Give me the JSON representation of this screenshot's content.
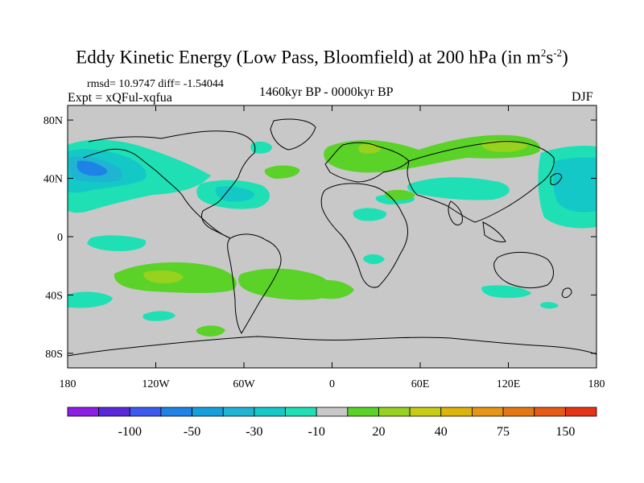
{
  "title": {
    "main": "Eddy Kinetic Energy (Low Pass, Bloomfield) at 200 hPa (in m",
    "sup1": "2",
    "mid": "s",
    "sup2": "-2",
    "end": ")"
  },
  "stats": "rmsd= 10.9747 diff= -1.54044",
  "experiment": "Expt = xQFul-xqfua",
  "period": "1460kyr BP - 0000kyr BP",
  "season": "DJF",
  "axes": {
    "x_ticks": [
      {
        "lon": -180,
        "label": "180"
      },
      {
        "lon": -120,
        "label": "120W"
      },
      {
        "lon": -60,
        "label": "60W"
      },
      {
        "lon": 0,
        "label": "0"
      },
      {
        "lon": 60,
        "label": "60E"
      },
      {
        "lon": 120,
        "label": "120E"
      },
      {
        "lon": 180,
        "label": "180"
      }
    ],
    "y_ticks": [
      {
        "lat": 80,
        "label": "80N"
      },
      {
        "lat": 40,
        "label": "40N"
      },
      {
        "lat": 0,
        "label": "0"
      },
      {
        "lat": -40,
        "label": "40S"
      },
      {
        "lat": -80,
        "label": "80S"
      }
    ],
    "lon_range": [
      -180,
      180
    ],
    "lat_range": [
      -90,
      90
    ]
  },
  "colorbar": {
    "colors": [
      "#8c1ee6",
      "#5a28dc",
      "#3c5af0",
      "#1e82e6",
      "#14a0dc",
      "#1eb4d2",
      "#14c8c8",
      "#1ee0b4",
      "#c8c8c8",
      "#5ad228",
      "#96d21e",
      "#c8cc14",
      "#dcb40a",
      "#e69614",
      "#e67814",
      "#e65a14",
      "#e63214"
    ],
    "labels": [
      {
        "boundary": 2,
        "text": "-100"
      },
      {
        "boundary": 4,
        "text": "-50"
      },
      {
        "boundary": 6,
        "text": "-30"
      },
      {
        "boundary": 8,
        "text": "-10"
      },
      {
        "boundary": 10,
        "text": "20"
      },
      {
        "boundary": 12,
        "text": "40"
      },
      {
        "boundary": 14,
        "text": "75"
      },
      {
        "boundary": 16,
        "text": "150"
      }
    ]
  },
  "colors": {
    "ocean_background": "#c8c8c8",
    "coastline": "#000000"
  }
}
